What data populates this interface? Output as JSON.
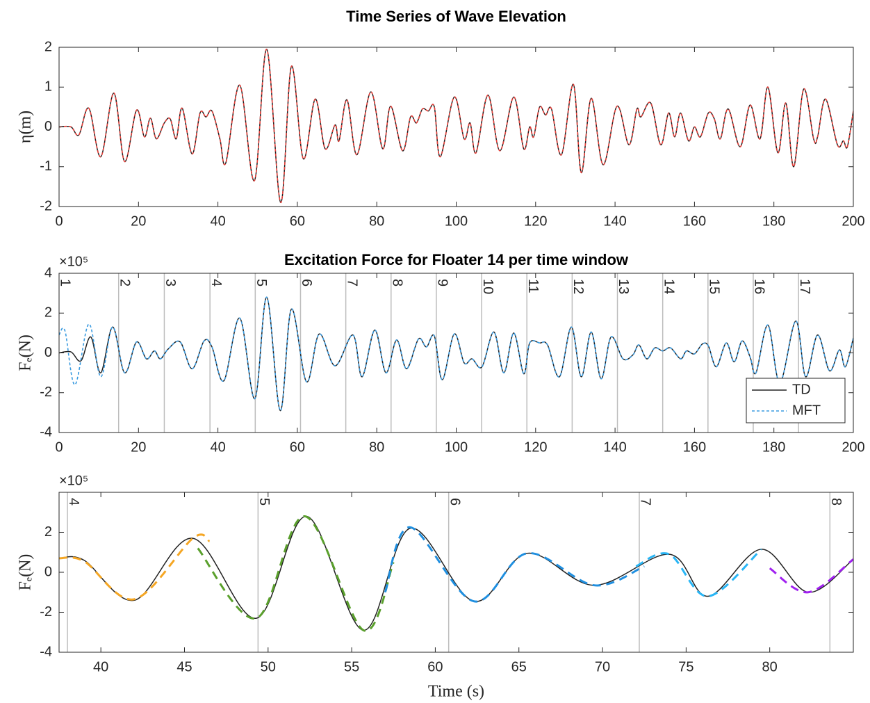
{
  "chart_data": [
    {
      "type": "line",
      "title": "Time Series of Wave Elevation",
      "ylabel": "η(m)",
      "xlim": [
        0,
        200
      ],
      "xticks": [
        0,
        20,
        40,
        60,
        80,
        100,
        120,
        140,
        160,
        180,
        200
      ],
      "ylim": [
        -2,
        2
      ],
      "yticks": [
        -2,
        -1,
        0,
        1,
        2
      ],
      "grid": false,
      "x": [
        0,
        3,
        5,
        7.5,
        10.5,
        13.8,
        16.5,
        19.5,
        21.5,
        23,
        24.5,
        26.5,
        28,
        29.5,
        31,
        33.5,
        35.5,
        37,
        38.5,
        40.5,
        42,
        45.5,
        49.2,
        52.3,
        55.8,
        58.5,
        61.5,
        64.5,
        67,
        69.5,
        70.5,
        72.5,
        75,
        78.5,
        81.5,
        83.5,
        86.5,
        88.5,
        90,
        91.5,
        93,
        94.5,
        96,
        99.5,
        102,
        103.5,
        105,
        108,
        111,
        114.5,
        117,
        118.5,
        119.5,
        121,
        122.5,
        124,
        126.5,
        129.5,
        131.5,
        134,
        137,
        140.5,
        143.5,
        145.5,
        146.5,
        149,
        151.5,
        153.5,
        155,
        156.5,
        158.5,
        160,
        161.5,
        163.5,
        165,
        166.5,
        168.5,
        171.5,
        174,
        176.5,
        178.5,
        181,
        183,
        185,
        187.5,
        190,
        191,
        193,
        196,
        197.5,
        198.5,
        200
      ],
      "series": [
        {
          "color": "#222222",
          "linestyle": "solid",
          "values": [
            0,
            0,
            -0.2,
            0.47,
            -0.75,
            0.85,
            -0.87,
            0.42,
            -0.25,
            0.22,
            -0.3,
            0.1,
            0.2,
            -0.3,
            0.47,
            -0.68,
            0.35,
            0.25,
            0.4,
            -0.3,
            -0.9,
            1.05,
            -1.35,
            1.95,
            -1.9,
            1.52,
            -0.8,
            0.7,
            -0.55,
            0.05,
            -0.35,
            0.68,
            -0.7,
            0.88,
            -0.55,
            0.52,
            -0.6,
            0.25,
            0.1,
            0.45,
            0.4,
            0.5,
            -0.75,
            0.75,
            -0.3,
            0.1,
            -0.65,
            0.8,
            -0.6,
            0.75,
            -0.55,
            0,
            -0.25,
            0.5,
            0.3,
            0.45,
            -0.7,
            1.07,
            -1.15,
            0.72,
            -0.95,
            0.52,
            -0.45,
            0.45,
            0.25,
            0.6,
            -0.45,
            0.35,
            -0.25,
            0.35,
            -0.35,
            0,
            -0.25,
            0.35,
            0.2,
            -0.3,
            0.45,
            -0.5,
            0.55,
            -0.3,
            1.0,
            -0.65,
            0.6,
            -1.0,
            0.95,
            -0.3,
            -0.25,
            0.7,
            -0.45,
            -0.35,
            -0.5,
            0.4
          ]
        },
        {
          "color": "#e8403a",
          "linestyle": "dashed",
          "values": [
            0,
            0,
            -0.2,
            0.47,
            -0.75,
            0.85,
            -0.87,
            0.42,
            -0.25,
            0.22,
            -0.3,
            0.1,
            0.2,
            -0.3,
            0.47,
            -0.68,
            0.35,
            0.25,
            0.4,
            -0.3,
            -0.9,
            1.05,
            -1.35,
            1.95,
            -1.9,
            1.52,
            -0.8,
            0.7,
            -0.55,
            0.05,
            -0.35,
            0.68,
            -0.7,
            0.88,
            -0.55,
            0.52,
            -0.6,
            0.25,
            0.1,
            0.45,
            0.4,
            0.5,
            -0.75,
            0.75,
            -0.3,
            0.1,
            -0.65,
            0.8,
            -0.6,
            0.75,
            -0.55,
            0,
            -0.25,
            0.5,
            0.3,
            0.45,
            -0.7,
            1.07,
            -1.15,
            0.72,
            -0.95,
            0.52,
            -0.45,
            0.45,
            0.25,
            0.6,
            -0.45,
            0.35,
            -0.25,
            0.35,
            -0.35,
            0,
            -0.25,
            0.35,
            0.2,
            -0.3,
            0.45,
            -0.5,
            0.55,
            -0.3,
            1.0,
            -0.65,
            0.6,
            -1.0,
            0.95,
            -0.3,
            -0.25,
            0.7,
            -0.45,
            -0.35,
            -0.5,
            0.4
          ]
        }
      ]
    },
    {
      "type": "line",
      "title": "Excitation Force for Floater 14 per time window",
      "ylabel": "Fₑ(N)",
      "y_multiplier": "×10⁵",
      "xlim": [
        0,
        200
      ],
      "xticks": [
        0,
        20,
        40,
        60,
        80,
        100,
        120,
        140,
        160,
        180,
        200
      ],
      "ylim": [
        -4,
        4
      ],
      "yticks": [
        -4,
        -2,
        0,
        2,
        4
      ],
      "grid": false,
      "legend": "lower right",
      "windows": [
        1,
        2,
        3,
        4,
        5,
        6,
        7,
        8,
        9,
        10,
        11,
        12,
        13,
        14,
        15,
        16,
        17
      ],
      "window_starts": [
        0,
        15,
        26.5,
        38,
        49.4,
        60.8,
        72.2,
        83.6,
        95,
        106.4,
        117.8,
        129.2,
        140.6,
        152,
        163.4,
        174.8,
        186.2
      ],
      "series": [
        {
          "name": "TD",
          "color": "#222222",
          "linestyle": "solid",
          "x": [
            0,
            3,
            5.5,
            8,
            10.5,
            13.5,
            16.5,
            19.5,
            22,
            24,
            25.5,
            27.5,
            30.5,
            33.5,
            36.5,
            38.5,
            41.5,
            45.5,
            49.3,
            52.3,
            55.7,
            58.5,
            62.3,
            65.5,
            69.5,
            74,
            76.3,
            79.5,
            82.3,
            85,
            87.5,
            90.5,
            92.5,
            94.5,
            96.5,
            99.5,
            102,
            104,
            106.5,
            109.5,
            112,
            114.5,
            117,
            118.5,
            121,
            123,
            126,
            129,
            131.5,
            134,
            136.5,
            139,
            142,
            144.5,
            146,
            148,
            150,
            152,
            154,
            156.5,
            158,
            160,
            162,
            163.5,
            165.5,
            168,
            170,
            172,
            174,
            175.5,
            178.5,
            181.5,
            185.5,
            188,
            191,
            194,
            196.5,
            198,
            200
          ],
          "values": [
            0,
            0.05,
            -0.4,
            0.8,
            -1.0,
            1.3,
            -1.0,
            0.55,
            -0.3,
            0.1,
            -0.3,
            0.2,
            0.55,
            -0.8,
            0.6,
            0.3,
            -1.4,
            1.75,
            -2.3,
            2.8,
            -2.9,
            2.2,
            -1.45,
            0.95,
            -0.65,
            0.9,
            -1.2,
            1.15,
            -1.0,
            0.65,
            -0.8,
            0.7,
            0.3,
            0.85,
            -1.35,
            0.95,
            -0.5,
            -0.3,
            -0.7,
            1.05,
            -1.0,
            1.0,
            -1.05,
            0.5,
            0.5,
            0.4,
            -1.2,
            1.3,
            -1.2,
            1.05,
            -1.3,
            0.8,
            -0.3,
            -0.1,
            0.4,
            -0.3,
            0.25,
            0.1,
            0.25,
            -0.3,
            0.1,
            -0.05,
            0.45,
            0.35,
            -0.7,
            0.5,
            -0.45,
            0.6,
            -0.2,
            -1.0,
            1.4,
            -1.5,
            1.6,
            -1.2,
            0.9,
            -0.9,
            0.15,
            -0.7,
            0.75
          ]
        },
        {
          "name": "MFT",
          "color": "#3a9be0",
          "linestyle": "dashed",
          "x": [
            0,
            1.5,
            4,
            7.5,
            10.5,
            13.5,
            16.5,
            19.5,
            22,
            24,
            25.5,
            27.5,
            30.5,
            33.5,
            36.5,
            38.5,
            41.5,
            45.5,
            49.3,
            52.3,
            55.7,
            58.5,
            62.3,
            65.5,
            69.5,
            74,
            76.3,
            79.5,
            82.3,
            85,
            87.5,
            90.5,
            92.5,
            94.5,
            96.5,
            99.5,
            102,
            104,
            106.5,
            109.5,
            112,
            114.5,
            117,
            118.5,
            121,
            123,
            126,
            129,
            131.5,
            134,
            136.5,
            139,
            142,
            144.5,
            146,
            148,
            150,
            152,
            154,
            156.5,
            158,
            160,
            162,
            163.5,
            165.5,
            168,
            170,
            172,
            174,
            175.5,
            178.5,
            181.5,
            185.5,
            188,
            191,
            194,
            196.5,
            198,
            200
          ],
          "values": [
            0.9,
            1.1,
            -1.6,
            1.45,
            -1.2,
            1.3,
            -1.0,
            0.55,
            -0.3,
            0.1,
            -0.3,
            0.2,
            0.55,
            -0.8,
            0.6,
            0.3,
            -1.4,
            1.75,
            -2.3,
            2.8,
            -2.9,
            2.2,
            -1.45,
            0.95,
            -0.65,
            0.9,
            -1.2,
            1.15,
            -1.0,
            0.65,
            -0.8,
            0.7,
            0.3,
            0.85,
            -1.35,
            0.95,
            -0.5,
            -0.3,
            -0.7,
            1.05,
            -1.0,
            1.0,
            -1.05,
            0.5,
            0.5,
            0.4,
            -1.2,
            1.3,
            -1.2,
            1.05,
            -1.3,
            0.8,
            -0.3,
            -0.1,
            0.4,
            -0.3,
            0.25,
            0.1,
            0.25,
            -0.3,
            0.1,
            -0.05,
            0.45,
            0.35,
            -0.7,
            0.5,
            -0.45,
            0.6,
            -0.2,
            -1.0,
            1.4,
            -1.5,
            1.6,
            -1.2,
            0.9,
            -0.9,
            0.15,
            -0.7,
            0.75
          ]
        }
      ]
    },
    {
      "type": "line",
      "ylabel": "Fₑ(N)",
      "xlabel": "Time (s)",
      "y_multiplier": "×10⁵",
      "xlim": [
        37.5,
        85
      ],
      "xticks": [
        40,
        45,
        50,
        55,
        60,
        65,
        70,
        75,
        80
      ],
      "ylim": [
        -4,
        4
      ],
      "yticks": [
        -4,
        -2,
        0,
        2
      ],
      "grid": false,
      "windows": [
        4,
        5,
        6,
        7,
        8
      ],
      "window_starts": [
        38,
        49.4,
        60.8,
        72.2,
        83.6
      ],
      "series": [
        {
          "color": "#222222",
          "linestyle": "solid",
          "x": [
            37.5,
            39,
            42,
            45.5,
            49.3,
            52.3,
            55.7,
            58.5,
            62.3,
            65.5,
            69.5,
            74,
            76.3,
            79.5,
            82.3,
            85
          ],
          "values": [
            0.7,
            0.6,
            -1.4,
            1.7,
            -2.3,
            2.8,
            -2.9,
            2.2,
            -1.45,
            0.95,
            -0.65,
            0.9,
            -1.2,
            1.15,
            -1.0,
            0.65
          ]
        },
        {
          "color": "#f5a623",
          "linestyle": "dashed",
          "x": [
            37.5,
            39,
            42,
            45.5,
            46.5
          ],
          "values": [
            0.7,
            0.55,
            -1.35,
            1.7,
            1.55
          ]
        },
        {
          "color": "#5aa02c",
          "linestyle": "dashed",
          "x": [
            45.8,
            49.3,
            52.2,
            55.7,
            57.5
          ],
          "values": [
            1.2,
            -2.3,
            2.8,
            -2.9,
            0.5
          ]
        },
        {
          "color": "#1f8fe0",
          "linestyle": "dashed",
          "x": [
            57,
            58.5,
            62.3,
            65.5,
            69.5,
            72.5
          ],
          "values": [
            -1.0,
            2.25,
            -1.45,
            0.95,
            -0.65,
            0.3
          ]
        },
        {
          "color": "#29b6f6",
          "linestyle": "dashed",
          "x": [
            72,
            74,
            76.3,
            79.5
          ],
          "values": [
            0.3,
            0.9,
            -1.2,
            1.15
          ]
        },
        {
          "color": "#a020f0",
          "linestyle": "dashed",
          "x": [
            80,
            82.3,
            85
          ],
          "values": [
            0.2,
            -1.0,
            0.65
          ]
        }
      ]
    }
  ]
}
